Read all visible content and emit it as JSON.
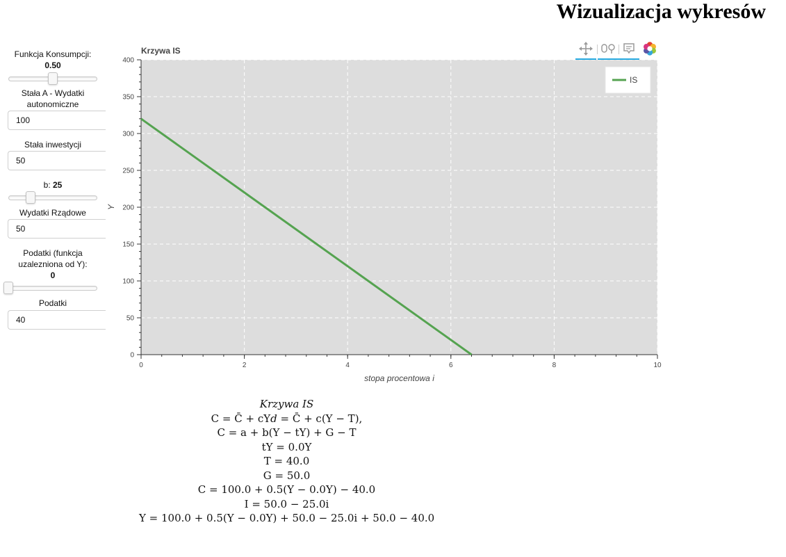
{
  "page": {
    "title": "Wizualizacja wykresów"
  },
  "controls": {
    "consumption": {
      "label": "Funkcja Konsumpcji:",
      "value": "0.50",
      "fraction": 0.5
    },
    "const_a": {
      "label": "Stała A - Wydatki autonomiczne",
      "value": "100"
    },
    "investment": {
      "label": "Stała inwestycji",
      "value": "50"
    },
    "b": {
      "label": "b: ",
      "value": "25",
      "fraction": 0.25
    },
    "gov": {
      "label": "Wydatki Rządowe",
      "value": "50"
    },
    "tax_rate": {
      "label": "Podatki (funkcja uzalezniona od Y):",
      "value": "0",
      "fraction": 0.0
    },
    "taxes": {
      "label": "Podatki",
      "value": "40"
    }
  },
  "toolbar": {
    "tools": [
      "pan",
      "wheel-zoom",
      "hover"
    ],
    "logo": "bokeh-logo"
  },
  "chart_data": {
    "type": "line",
    "title": "Krzywa IS",
    "xlabel": "stopa procentowa i",
    "ylabel": "Y",
    "xlim": [
      0,
      10
    ],
    "ylim": [
      0,
      400
    ],
    "x_ticks": [
      "0",
      "2",
      "4",
      "6",
      "8",
      "10"
    ],
    "y_ticks": [
      "0",
      "50",
      "100",
      "150",
      "200",
      "250",
      "300",
      "350",
      "400"
    ],
    "grid": true,
    "legend_position": "top-right",
    "series": [
      {
        "name": "IS",
        "color": "#55a350",
        "x": [
          0,
          6.4
        ],
        "y": [
          320,
          0
        ]
      }
    ]
  },
  "formulas": {
    "title": "Krzywa IS",
    "lines": [
      "C = C̄ + cY𝑑 = C̄ + c(Y − T),",
      "C = a + b(Y − tY) + G − T",
      "tY = 0.0Y",
      "T = 40.0",
      "G = 50.0",
      "C = 100.0 + 0.5(Y − 0.0Y) − 40.0",
      "I = 50.0 − 25.0i",
      "Y = 100.0 + 0.5(Y − 0.0Y) + 50.0 − 25.0i + 50.0 − 40.0"
    ]
  }
}
